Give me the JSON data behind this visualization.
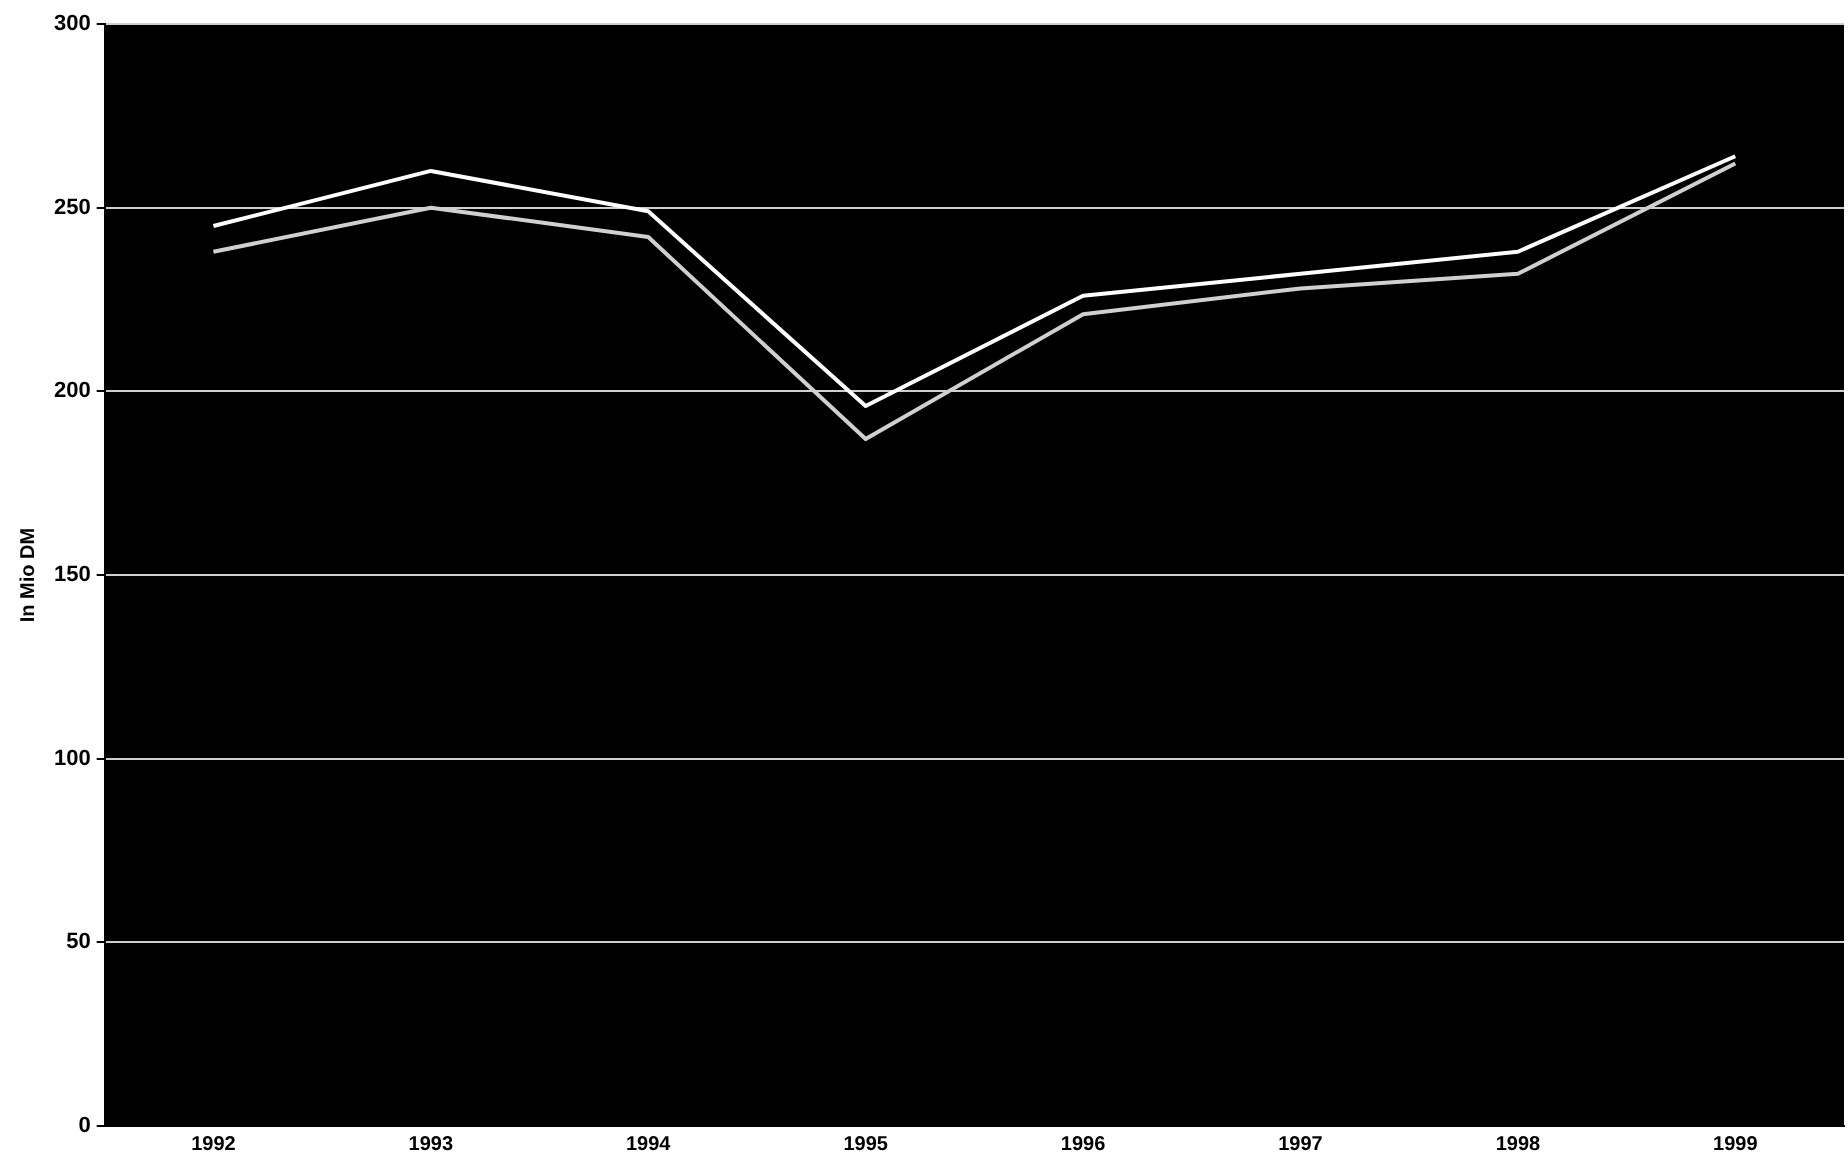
{
  "chart_data": {
    "type": "line",
    "ylabel": "In Mio DM",
    "categories": [
      "1992",
      "1993",
      "1994",
      "1995",
      "1996",
      "1997",
      "1998",
      "1999"
    ],
    "series": [
      {
        "color": "#ffffff",
        "values": [
          245,
          260,
          249,
          196,
          226,
          232,
          238,
          264
        ]
      },
      {
        "color": "#d0d0d0",
        "values": [
          238,
          250,
          242,
          187,
          221,
          228,
          232,
          262
        ]
      }
    ],
    "ylim": [
      0,
      300
    ],
    "yticks": [
      0,
      50,
      100,
      150,
      200,
      250,
      300
    ],
    "grid": "y",
    "legend": false,
    "marker": "none",
    "line_style": "solid"
  }
}
